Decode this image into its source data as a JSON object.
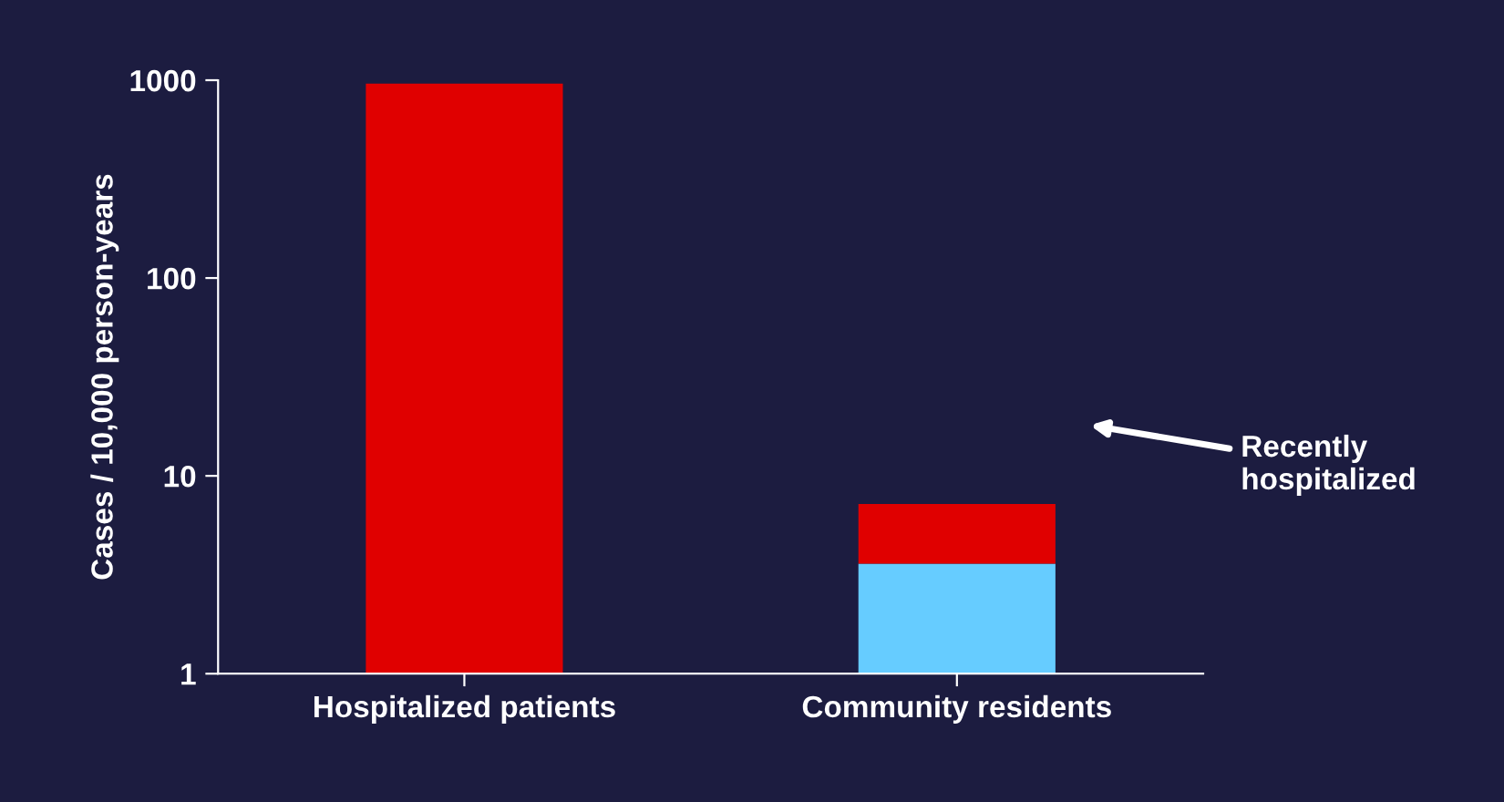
{
  "chart_data": {
    "type": "bar",
    "ylabel": "Cases / 10,000 person-years",
    "categories": [
      "Hospitalized patients",
      "Community residents"
    ],
    "stacked": true,
    "log": true,
    "series": [
      {
        "color": "#66ccff",
        "values": [
          null,
          3.6
        ]
      },
      {
        "color": "#e00000",
        "values": [
          960,
          3.6
        ]
      }
    ],
    "ylim": [
      1,
      1000
    ],
    "yticks": [
      1,
      10,
      100,
      1000
    ],
    "annotations": [
      "Recently\nhospitalized"
    ]
  }
}
